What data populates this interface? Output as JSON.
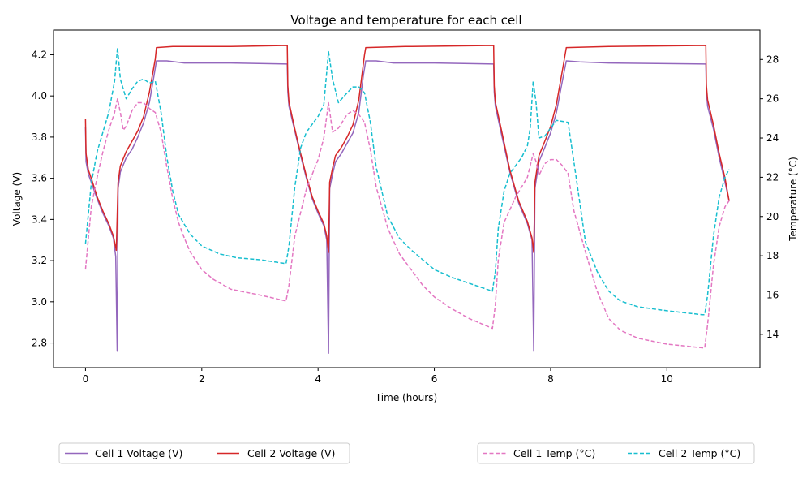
{
  "chart_data": {
    "type": "line",
    "title": "Voltage and temperature for each cell",
    "xlabel": "Time (hours)",
    "ylabel_left": "Voltage (V)",
    "ylabel_right": "Temperature (°C)",
    "xlim": [
      -0.55,
      11.6
    ],
    "ylim_left": [
      2.68,
      4.32
    ],
    "ylim_right": [
      12.3,
      29.5
    ],
    "x_ticks": [
      0,
      2,
      4,
      6,
      8,
      10
    ],
    "y_ticks_left": [
      2.8,
      3.0,
      3.2,
      3.4,
      3.6,
      3.8,
      4.0,
      4.2
    ],
    "y_ticks_right": [
      14,
      16,
      18,
      20,
      22,
      24,
      26,
      28
    ],
    "grid": false,
    "legend_left_placement": "bottom-left",
    "legend_right_placement": "bottom-right",
    "series": [
      {
        "name": "Cell 1 Voltage (V)",
        "axis": "left",
        "color": "#9467bd",
        "style": "solid",
        "points": [
          [
            0.0,
            3.85
          ],
          [
            0.01,
            3.68
          ],
          [
            0.05,
            3.62
          ],
          [
            0.1,
            3.58
          ],
          [
            0.2,
            3.5
          ],
          [
            0.3,
            3.43
          ],
          [
            0.4,
            3.37
          ],
          [
            0.48,
            3.31
          ],
          [
            0.52,
            3.22
          ],
          [
            0.545,
            2.76
          ],
          [
            0.56,
            3.55
          ],
          [
            0.6,
            3.63
          ],
          [
            0.7,
            3.7
          ],
          [
            0.8,
            3.74
          ],
          [
            0.9,
            3.8
          ],
          [
            1.0,
            3.87
          ],
          [
            1.1,
            3.97
          ],
          [
            1.18,
            4.1
          ],
          [
            1.22,
            4.17
          ],
          [
            1.4,
            4.17
          ],
          [
            1.7,
            4.16
          ],
          [
            2.5,
            4.16
          ],
          [
            3.47,
            4.155
          ],
          [
            3.48,
            4.02
          ],
          [
            3.5,
            3.95
          ],
          [
            3.6,
            3.83
          ],
          [
            3.7,
            3.71
          ],
          [
            3.8,
            3.6
          ],
          [
            3.9,
            3.5
          ],
          [
            4.0,
            3.43
          ],
          [
            4.1,
            3.37
          ],
          [
            4.15,
            3.3
          ],
          [
            4.18,
            2.75
          ],
          [
            4.2,
            3.55
          ],
          [
            4.25,
            3.62
          ],
          [
            4.3,
            3.68
          ],
          [
            4.4,
            3.72
          ],
          [
            4.5,
            3.77
          ],
          [
            4.6,
            3.82
          ],
          [
            4.7,
            3.92
          ],
          [
            4.78,
            4.1
          ],
          [
            4.82,
            4.17
          ],
          [
            5.0,
            4.17
          ],
          [
            5.3,
            4.16
          ],
          [
            6.0,
            4.16
          ],
          [
            7.02,
            4.155
          ],
          [
            7.03,
            4.02
          ],
          [
            7.05,
            3.95
          ],
          [
            7.15,
            3.82
          ],
          [
            7.3,
            3.63
          ],
          [
            7.45,
            3.48
          ],
          [
            7.6,
            3.38
          ],
          [
            7.68,
            3.3
          ],
          [
            7.71,
            2.76
          ],
          [
            7.73,
            3.55
          ],
          [
            7.8,
            3.68
          ],
          [
            7.9,
            3.75
          ],
          [
            8.0,
            3.82
          ],
          [
            8.1,
            3.92
          ],
          [
            8.2,
            4.07
          ],
          [
            8.27,
            4.17
          ],
          [
            8.5,
            4.165
          ],
          [
            9.0,
            4.16
          ],
          [
            10.67,
            4.155
          ],
          [
            10.68,
            4.02
          ],
          [
            10.7,
            3.95
          ],
          [
            10.8,
            3.84
          ],
          [
            10.9,
            3.7
          ],
          [
            11.0,
            3.58
          ],
          [
            11.07,
            3.49
          ]
        ]
      },
      {
        "name": "Cell 2 Voltage (V)",
        "axis": "left",
        "color": "#d62728",
        "style": "solid",
        "points": [
          [
            0.0,
            3.89
          ],
          [
            0.01,
            3.72
          ],
          [
            0.05,
            3.64
          ],
          [
            0.1,
            3.6
          ],
          [
            0.2,
            3.51
          ],
          [
            0.3,
            3.44
          ],
          [
            0.4,
            3.38
          ],
          [
            0.48,
            3.32
          ],
          [
            0.53,
            3.25
          ],
          [
            0.56,
            3.58
          ],
          [
            0.6,
            3.66
          ],
          [
            0.7,
            3.73
          ],
          [
            0.8,
            3.78
          ],
          [
            0.9,
            3.83
          ],
          [
            1.0,
            3.9
          ],
          [
            1.1,
            4.02
          ],
          [
            1.2,
            4.18
          ],
          [
            1.22,
            4.235
          ],
          [
            1.5,
            4.24
          ],
          [
            2.5,
            4.24
          ],
          [
            3.47,
            4.245
          ],
          [
            3.48,
            4.05
          ],
          [
            3.5,
            3.97
          ],
          [
            3.6,
            3.84
          ],
          [
            3.7,
            3.72
          ],
          [
            3.8,
            3.61
          ],
          [
            3.9,
            3.51
          ],
          [
            4.0,
            3.44
          ],
          [
            4.1,
            3.38
          ],
          [
            4.15,
            3.32
          ],
          [
            4.18,
            3.24
          ],
          [
            4.2,
            3.58
          ],
          [
            4.25,
            3.65
          ],
          [
            4.3,
            3.71
          ],
          [
            4.4,
            3.75
          ],
          [
            4.5,
            3.8
          ],
          [
            4.6,
            3.86
          ],
          [
            4.7,
            3.98
          ],
          [
            4.8,
            4.2
          ],
          [
            4.82,
            4.235
          ],
          [
            5.5,
            4.24
          ],
          [
            7.02,
            4.245
          ],
          [
            7.03,
            4.05
          ],
          [
            7.05,
            3.97
          ],
          [
            7.15,
            3.84
          ],
          [
            7.3,
            3.64
          ],
          [
            7.45,
            3.49
          ],
          [
            7.6,
            3.39
          ],
          [
            7.68,
            3.31
          ],
          [
            7.71,
            3.24
          ],
          [
            7.73,
            3.58
          ],
          [
            7.8,
            3.71
          ],
          [
            7.9,
            3.78
          ],
          [
            8.0,
            3.85
          ],
          [
            8.1,
            3.96
          ],
          [
            8.2,
            4.12
          ],
          [
            8.27,
            4.235
          ],
          [
            9.0,
            4.24
          ],
          [
            10.67,
            4.245
          ],
          [
            10.68,
            4.05
          ],
          [
            10.7,
            3.98
          ],
          [
            10.8,
            3.86
          ],
          [
            10.9,
            3.72
          ],
          [
            11.0,
            3.6
          ],
          [
            11.07,
            3.49
          ]
        ]
      },
      {
        "name": "Cell 1 Temp (°C)",
        "axis": "right",
        "color": "#e377c2",
        "style": "dashed",
        "points": [
          [
            0.0,
            17.3
          ],
          [
            0.1,
            20.5
          ],
          [
            0.2,
            22.0
          ],
          [
            0.3,
            23.3
          ],
          [
            0.4,
            24.4
          ],
          [
            0.5,
            25.3
          ],
          [
            0.55,
            26.0
          ],
          [
            0.6,
            25.3
          ],
          [
            0.65,
            24.4
          ],
          [
            0.7,
            24.6
          ],
          [
            0.8,
            25.4
          ],
          [
            0.9,
            25.8
          ],
          [
            1.0,
            25.8
          ],
          [
            1.1,
            25.5
          ],
          [
            1.2,
            25.3
          ],
          [
            1.3,
            24.3
          ],
          [
            1.4,
            22.5
          ],
          [
            1.5,
            20.9
          ],
          [
            1.6,
            19.7
          ],
          [
            1.7,
            18.9
          ],
          [
            1.8,
            18.2
          ],
          [
            2.0,
            17.3
          ],
          [
            2.2,
            16.8
          ],
          [
            2.5,
            16.3
          ],
          [
            3.0,
            16.0
          ],
          [
            3.45,
            15.7
          ],
          [
            3.5,
            16.5
          ],
          [
            3.6,
            19.0
          ],
          [
            3.8,
            21.4
          ],
          [
            4.0,
            22.9
          ],
          [
            4.1,
            24.0
          ],
          [
            4.18,
            25.8
          ],
          [
            4.25,
            24.3
          ],
          [
            4.35,
            24.5
          ],
          [
            4.5,
            25.2
          ],
          [
            4.6,
            25.4
          ],
          [
            4.7,
            25.2
          ],
          [
            4.8,
            24.8
          ],
          [
            4.9,
            23.4
          ],
          [
            5.0,
            21.5
          ],
          [
            5.2,
            19.4
          ],
          [
            5.4,
            18.1
          ],
          [
            5.6,
            17.3
          ],
          [
            5.8,
            16.5
          ],
          [
            6.0,
            15.9
          ],
          [
            6.3,
            15.3
          ],
          [
            6.6,
            14.8
          ],
          [
            7.0,
            14.3
          ],
          [
            7.05,
            15.5
          ],
          [
            7.1,
            17.8
          ],
          [
            7.2,
            19.7
          ],
          [
            7.4,
            21.0
          ],
          [
            7.6,
            22.0
          ],
          [
            7.7,
            23.2
          ],
          [
            7.75,
            22.8
          ],
          [
            7.8,
            22.1
          ],
          [
            7.9,
            22.7
          ],
          [
            8.0,
            22.9
          ],
          [
            8.1,
            22.9
          ],
          [
            8.2,
            22.6
          ],
          [
            8.3,
            22.2
          ],
          [
            8.4,
            20.3
          ],
          [
            8.6,
            18.2
          ],
          [
            8.8,
            16.2
          ],
          [
            9.0,
            14.8
          ],
          [
            9.2,
            14.2
          ],
          [
            9.5,
            13.8
          ],
          [
            10.0,
            13.5
          ],
          [
            10.65,
            13.3
          ],
          [
            10.7,
            14.5
          ],
          [
            10.8,
            17.5
          ],
          [
            10.9,
            19.5
          ],
          [
            11.0,
            20.5
          ],
          [
            11.07,
            20.8
          ]
        ]
      },
      {
        "name": "Cell 2 Temp (°C)",
        "axis": "right",
        "color": "#17becf",
        "style": "dashed",
        "points": [
          [
            0.0,
            18.6
          ],
          [
            0.1,
            21.7
          ],
          [
            0.2,
            23.3
          ],
          [
            0.3,
            24.3
          ],
          [
            0.4,
            25.3
          ],
          [
            0.5,
            26.9
          ],
          [
            0.55,
            28.6
          ],
          [
            0.6,
            27.0
          ],
          [
            0.7,
            26.0
          ],
          [
            0.8,
            26.5
          ],
          [
            0.9,
            26.9
          ],
          [
            1.0,
            27.0
          ],
          [
            1.1,
            26.8
          ],
          [
            1.2,
            26.9
          ],
          [
            1.3,
            25.3
          ],
          [
            1.4,
            23.0
          ],
          [
            1.5,
            21.3
          ],
          [
            1.6,
            20.1
          ],
          [
            1.8,
            19.1
          ],
          [
            2.0,
            18.5
          ],
          [
            2.3,
            18.1
          ],
          [
            2.6,
            17.9
          ],
          [
            3.0,
            17.8
          ],
          [
            3.45,
            17.6
          ],
          [
            3.5,
            18.5
          ],
          [
            3.6,
            21.5
          ],
          [
            3.7,
            23.5
          ],
          [
            3.8,
            24.3
          ],
          [
            3.9,
            24.7
          ],
          [
            4.0,
            25.1
          ],
          [
            4.1,
            25.7
          ],
          [
            4.18,
            28.4
          ],
          [
            4.25,
            27.0
          ],
          [
            4.35,
            25.8
          ],
          [
            4.5,
            26.3
          ],
          [
            4.6,
            26.6
          ],
          [
            4.7,
            26.6
          ],
          [
            4.8,
            26.3
          ],
          [
            4.9,
            24.8
          ],
          [
            5.0,
            22.5
          ],
          [
            5.2,
            20.0
          ],
          [
            5.4,
            18.9
          ],
          [
            5.6,
            18.3
          ],
          [
            5.8,
            17.8
          ],
          [
            6.0,
            17.3
          ],
          [
            6.3,
            16.9
          ],
          [
            6.6,
            16.6
          ],
          [
            7.0,
            16.2
          ],
          [
            7.05,
            17.2
          ],
          [
            7.1,
            19.4
          ],
          [
            7.2,
            21.3
          ],
          [
            7.3,
            22.2
          ],
          [
            7.5,
            23.0
          ],
          [
            7.6,
            23.6
          ],
          [
            7.65,
            24.5
          ],
          [
            7.7,
            26.9
          ],
          [
            7.75,
            25.8
          ],
          [
            7.8,
            24.0
          ],
          [
            7.9,
            24.1
          ],
          [
            8.0,
            24.5
          ],
          [
            8.1,
            24.9
          ],
          [
            8.3,
            24.8
          ],
          [
            8.4,
            22.8
          ],
          [
            8.6,
            18.7
          ],
          [
            8.8,
            17.2
          ],
          [
            9.0,
            16.2
          ],
          [
            9.2,
            15.7
          ],
          [
            9.5,
            15.4
          ],
          [
            10.0,
            15.2
          ],
          [
            10.6,
            15.0
          ],
          [
            10.65,
            15.0
          ],
          [
            10.7,
            16.0
          ],
          [
            10.8,
            19.0
          ],
          [
            10.9,
            21.0
          ],
          [
            11.0,
            22.0
          ],
          [
            11.07,
            22.4
          ]
        ]
      }
    ]
  }
}
